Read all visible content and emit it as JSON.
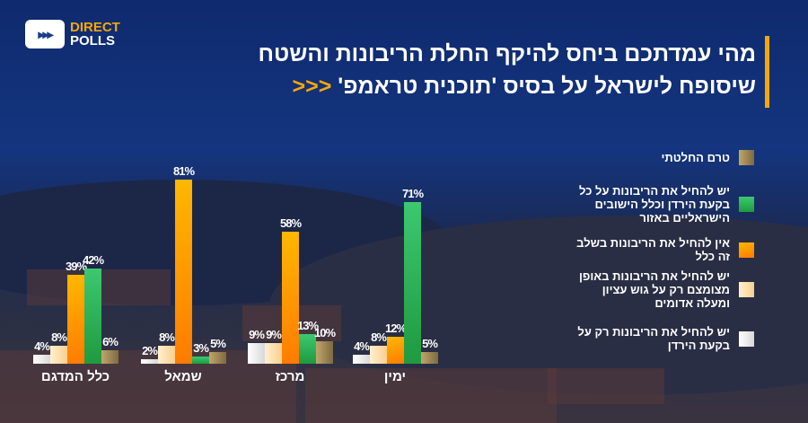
{
  "logo": {
    "line1": "DIRECT",
    "line2": "POLLS"
  },
  "title": {
    "line1": "מהי עמדתכם ביחס להיקף החלת הריבונות והשטח",
    "line2": "שיסופח לישראל על בסיס 'תוכנית טראמפ'",
    "arrows": "<<<"
  },
  "colors": {
    "white": "#eeeeee",
    "cream": "#fde2b0",
    "orange": "#ff9a00",
    "green": "#2cb55a",
    "brown": "#a08a55",
    "accent": "#f6a800"
  },
  "chart_data": {
    "type": "bar",
    "categories": [
      "כלל המדגם",
      "שמאל",
      "מרכז",
      "ימין"
    ],
    "series": [
      {
        "name": "יש להחיל את הריבונות רק על בקעת הירדן",
        "color": "#eeeeee",
        "values": [
          4,
          2,
          9,
          4
        ]
      },
      {
        "name": "יש להחיל את הריבונות באופן מצומצם רק על גוש עציון ומעלה אדומים",
        "color": "#fde2b0",
        "values": [
          8,
          8,
          9,
          8
        ]
      },
      {
        "name": "אין להחיל את הריבונות בשלב זה כלל",
        "color": "#ff9a00",
        "values": [
          39,
          81,
          58,
          12
        ]
      },
      {
        "name": "יש להחיל את הריבונות על כל בקעת הירדן וכלל הישובים הישראליים באזור",
        "color": "#2cb55a",
        "values": [
          42,
          3,
          13,
          71
        ]
      },
      {
        "name": "טרם החלטתי",
        "color": "#a08a55",
        "values": [
          6,
          5,
          10,
          5
        ]
      }
    ],
    "legend_order": [
      4,
      3,
      2,
      1,
      0
    ],
    "ylim": [
      0,
      85
    ],
    "unit": "%",
    "legend": "right"
  }
}
